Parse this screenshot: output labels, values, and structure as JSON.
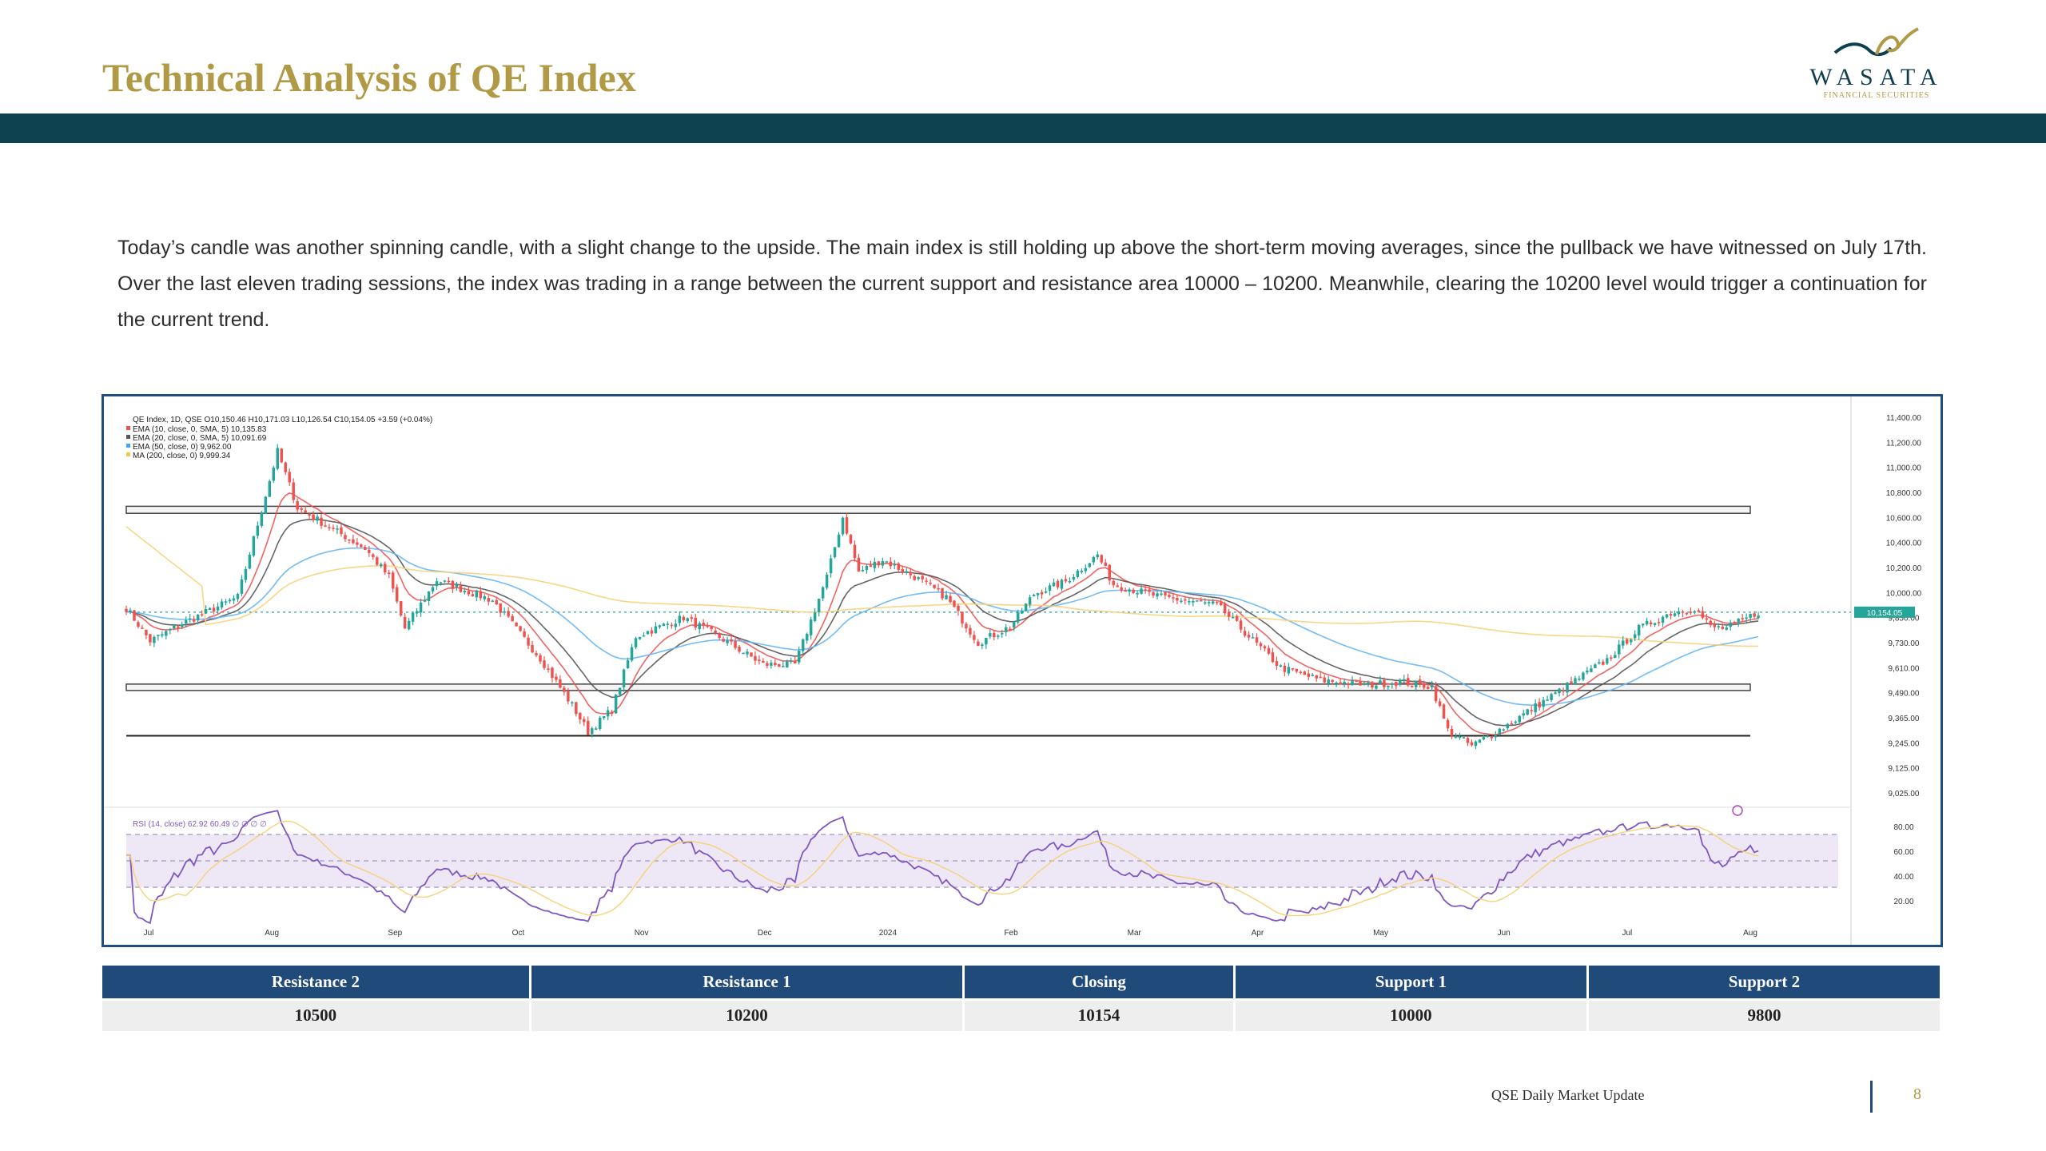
{
  "page": {
    "title": "Technical Analysis of QE Index",
    "logo_word": "WASATA",
    "logo_sub": "FINANCIAL SECURITIES",
    "paragraph": "Today’s candle was another spinning candle, with a slight change to the upside. The main index is still holding up above the short-term moving averages, since the pullback we have witnessed on July 17th. Over the last eleven trading sessions, the index was trading in a range between the current support and resistance area 10000 – 10200. Meanwhile, clearing the 10200 level would trigger a continuation for the current trend.",
    "footer_label": "QSE Daily Market Update",
    "page_number": "8"
  },
  "colors": {
    "title_gold": "#b09a46",
    "band": "#0e4250",
    "table_header": "#1f4a7a",
    "up": "#26a69a",
    "down": "#ef5350"
  },
  "levels_table": {
    "headers": [
      "Resistance 2",
      "Resistance 1",
      "Closing",
      "Support 1",
      "Support 2"
    ],
    "values": [
      "10500",
      "10200",
      "10154",
      "10000",
      "9800"
    ]
  },
  "chart_data": {
    "type": "candlestick",
    "legend": {
      "ohlc": "QE Index, 1D, QSE  O10,150.46  H10,171.03  L10,126.54  C10,154.05  +3.59 (+0.04%)",
      "lines": [
        {
          "text": "EMA (10, close, 0, SMA, 5)  10,135.83",
          "color": "#ef5350"
        },
        {
          "text": "EMA (20, close, 0, SMA, 5)  10,091.69",
          "color": "#555555"
        },
        {
          "text": "EMA (50, close, 0)  9,962.00",
          "color": "#42a5f5"
        },
        {
          "text": "MA (200, close, 0)  9,999.34",
          "color": "#f4c84a"
        }
      ],
      "rsi": "RSI (14, close)  62.92  60.49  ∅ ∅ ∅ ∅"
    },
    "x_ticks": [
      "Jul",
      "Aug",
      "Sep",
      "Oct",
      "Nov",
      "Dec",
      "2024",
      "Feb",
      "Mar",
      "Apr",
      "May",
      "Jun",
      "Jul",
      "Aug"
    ],
    "y_ticks": [
      "11,400.00",
      "11,200.00",
      "11,000.00",
      "10,800.00",
      "10,600.00",
      "10,400.00",
      "10,200.00",
      "10,000.00",
      "9,850.00",
      "9,730.00",
      "9,610.00",
      "9,490.00",
      "9,365.00",
      "9,245.00",
      "9,125.00",
      "9,025.00"
    ],
    "rsi_ticks": [
      "80.00",
      "60.00",
      "40.00",
      "20.00"
    ],
    "last_price_label": "10,154.05",
    "close_anchors": [
      [
        0,
        10180
      ],
      [
        6,
        9970
      ],
      [
        14,
        10080
      ],
      [
        28,
        10250
      ],
      [
        38,
        11180
      ],
      [
        43,
        10820
      ],
      [
        60,
        10560
      ],
      [
        66,
        10380
      ],
      [
        70,
        10050
      ],
      [
        78,
        10360
      ],
      [
        92,
        10230
      ],
      [
        104,
        9860
      ],
      [
        112,
        9560
      ],
      [
        116,
        9390
      ],
      [
        122,
        9530
      ],
      [
        128,
        10000
      ],
      [
        140,
        10120
      ],
      [
        148,
        10010
      ],
      [
        160,
        9820
      ],
      [
        168,
        9820
      ],
      [
        176,
        10380
      ],
      [
        180,
        10760
      ],
      [
        184,
        10410
      ],
      [
        190,
        10490
      ],
      [
        198,
        10380
      ],
      [
        206,
        10250
      ],
      [
        214,
        9960
      ],
      [
        222,
        10060
      ],
      [
        228,
        10270
      ],
      [
        236,
        10350
      ],
      [
        244,
        10520
      ],
      [
        248,
        10330
      ],
      [
        260,
        10250
      ],
      [
        274,
        10200
      ],
      [
        282,
        10000
      ],
      [
        290,
        9800
      ],
      [
        300,
        9720
      ],
      [
        312,
        9690
      ],
      [
        320,
        9710
      ],
      [
        328,
        9680
      ],
      [
        332,
        9400
      ],
      [
        338,
        9300
      ],
      [
        346,
        9420
      ],
      [
        360,
        9650
      ],
      [
        372,
        9850
      ],
      [
        380,
        10050
      ],
      [
        388,
        10150
      ],
      [
        394,
        10180
      ],
      [
        398,
        10060
      ],
      [
        402,
        10050
      ],
      [
        410,
        10154
      ]
    ],
    "resistance_bands": [
      [
        10785,
        10830
      ],
      [
        9655,
        9695
      ]
    ],
    "support_line": 9365
  }
}
